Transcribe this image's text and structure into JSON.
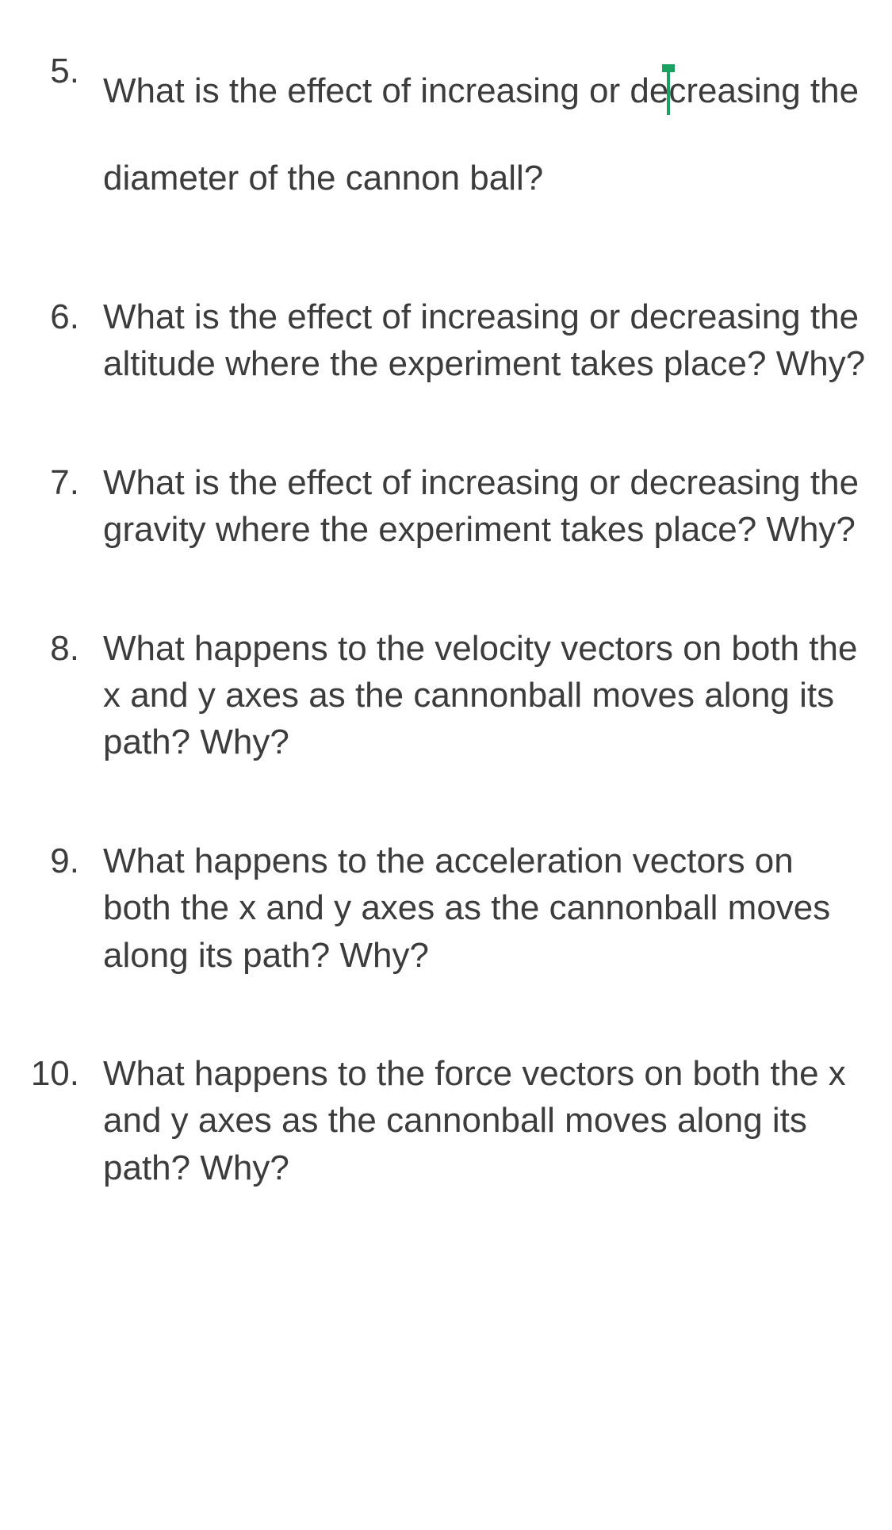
{
  "document": {
    "text_color": "#3c3c3c",
    "background_color": "#ffffff",
    "font_family": "Arial",
    "font_size_pt": 33,
    "cursor_color": "#1aa260",
    "questions": [
      {
        "number": "5.",
        "text_before_cursor": "What is the effect of increasing or de",
        "text_after_cursor": "creasing the diameter of the cannon ball?",
        "line_spacing": "double",
        "has_cursor": true
      },
      {
        "number": "6.",
        "text": "What is the effect of increasing or decreasing the altitude where the experiment takes place?  Why?",
        "line_spacing": "normal",
        "has_cursor": false
      },
      {
        "number": "7.",
        "text": "What is the effect of increasing or decreasing the gravity where the experiment takes place?  Why?",
        "line_spacing": "normal",
        "has_cursor": false
      },
      {
        "number": "8.",
        "text": "What happens to the velocity vectors on both the x and y axes as the cannonball moves along its path?  Why?",
        "line_spacing": "normal",
        "has_cursor": false
      },
      {
        "number": "9.",
        "text": "What happens to the acceleration vectors on both the x and y axes as the cannonball moves along its path?  Why?",
        "line_spacing": "normal",
        "has_cursor": false
      },
      {
        "number": "10.",
        "text": "What happens to the force vectors on both the x and y axes as the cannonball moves along its path?  Why?",
        "line_spacing": "normal",
        "has_cursor": false
      }
    ]
  }
}
